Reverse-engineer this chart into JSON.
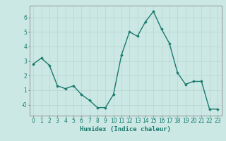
{
  "x": [
    0,
    1,
    2,
    3,
    4,
    5,
    6,
    7,
    8,
    9,
    10,
    11,
    12,
    13,
    14,
    15,
    16,
    17,
    18,
    19,
    20,
    21,
    22,
    23
  ],
  "y": [
    2.8,
    3.2,
    2.7,
    1.3,
    1.1,
    1.3,
    0.7,
    0.3,
    -0.2,
    -0.2,
    0.7,
    3.4,
    5.0,
    4.7,
    5.7,
    6.4,
    5.2,
    4.2,
    2.2,
    1.4,
    1.6,
    1.6,
    -0.3,
    -0.3
  ],
  "line_color": "#1a7a6e",
  "marker": "D",
  "marker_size": 1.8,
  "linewidth": 1.0,
  "bg_color": "#cce8e4",
  "grid_color_major": "#b8d4d0",
  "grid_color_minor": "#b8d4d0",
  "xlabel": "Humidex (Indice chaleur)",
  "xlabel_fontsize": 6.5,
  "tick_fontsize": 5.5,
  "ylim": [
    -0.75,
    6.8
  ],
  "xlim": [
    -0.5,
    23.5
  ],
  "yticks": [
    0,
    1,
    2,
    3,
    4,
    5,
    6
  ],
  "ytick_labels": [
    "-0",
    "1",
    "2",
    "3",
    "4",
    "5",
    "6"
  ],
  "xticks": [
    0,
    1,
    2,
    3,
    4,
    5,
    6,
    7,
    8,
    9,
    10,
    11,
    12,
    13,
    14,
    15,
    16,
    17,
    18,
    19,
    20,
    21,
    22,
    23
  ]
}
